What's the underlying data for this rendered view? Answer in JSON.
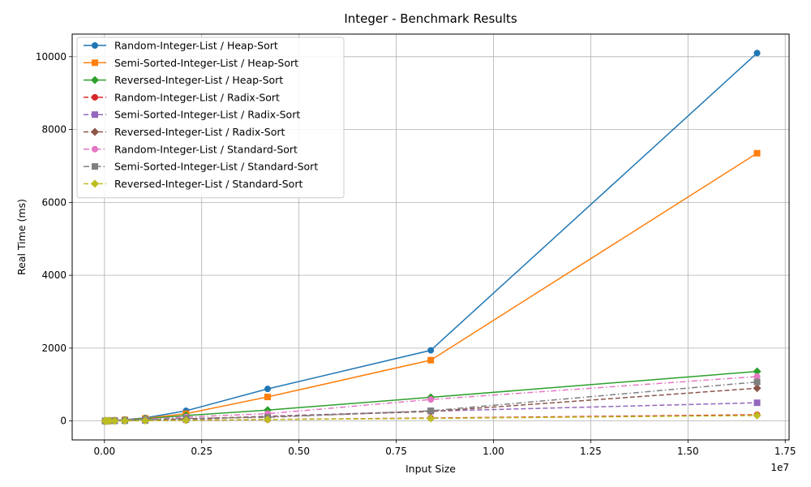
{
  "chart_data": {
    "type": "line",
    "title": "Integer - Benchmark Results",
    "xlabel": "Input Size",
    "ylabel": "Real Time (ms)",
    "x_offset_label": "1e7",
    "x_tick_labels": [
      "0.00",
      "0.25",
      "0.50",
      "0.75",
      "1.00",
      "1.25",
      "1.50",
      "1.75"
    ],
    "y_tick_labels": [
      "0",
      "2000",
      "4000",
      "6000",
      "8000",
      "10000"
    ],
    "x_ticks": [
      0,
      2500000,
      5000000,
      7500000,
      10000000,
      12500000,
      15000000,
      17500000
    ],
    "y_ticks": [
      0,
      2000,
      4000,
      6000,
      8000,
      10000
    ],
    "xlim": [
      -830000,
      17600000
    ],
    "ylim": [
      -520,
      10620
    ],
    "grid": true,
    "legend_position": "top-left",
    "x": [
      16384,
      32768,
      65536,
      131072,
      262144,
      524288,
      1048576,
      2097152,
      4194304,
      8388608,
      16777216
    ],
    "series": [
      {
        "name": "Random-Integer-List / Heap-Sort",
        "color": "#1f77b4",
        "marker": "circle",
        "linestyle": "solid",
        "values": [
          1,
          2,
          4,
          9,
          20,
          38,
          85,
          280,
          880,
          1940,
          10100
        ]
      },
      {
        "name": "Semi-Sorted-Integer-List / Heap-Sort",
        "color": "#ff7f0e",
        "marker": "square",
        "linestyle": "solid",
        "values": [
          1,
          2,
          3,
          7,
          15,
          32,
          70,
          200,
          660,
          1670,
          7350
        ]
      },
      {
        "name": "Reversed-Integer-List / Heap-Sort",
        "color": "#2ca02c",
        "marker": "diamond",
        "linestyle": "solid",
        "values": [
          1,
          1,
          3,
          6,
          13,
          28,
          60,
          150,
          300,
          650,
          1360
        ]
      },
      {
        "name": "Random-Integer-List / Radix-Sort",
        "color": "#d62728",
        "marker": "circle",
        "linestyle": "dashed",
        "values": [
          0,
          0,
          1,
          1,
          3,
          5,
          10,
          20,
          40,
          80,
          170
        ]
      },
      {
        "name": "Semi-Sorted-Integer-List / Radix-Sort",
        "color": "#9467bd",
        "marker": "square",
        "linestyle": "dashed",
        "values": [
          0,
          1,
          1,
          2,
          4,
          8,
          16,
          40,
          130,
          270,
          500
        ]
      },
      {
        "name": "Reversed-Integer-List / Radix-Sort",
        "color": "#8c564b",
        "marker": "diamond",
        "linestyle": "dashed",
        "values": [
          0,
          1,
          1,
          3,
          5,
          10,
          25,
          60,
          120,
          260,
          900
        ]
      },
      {
        "name": "Random-Integer-List / Standard-Sort",
        "color": "#e377c2",
        "marker": "circle",
        "linestyle": "dashdot",
        "values": [
          1,
          1,
          3,
          6,
          12,
          25,
          50,
          110,
          200,
          590,
          1220
        ]
      },
      {
        "name": "Semi-Sorted-Integer-List / Standard-Sort",
        "color": "#7f7f7f",
        "marker": "square",
        "linestyle": "dashdot",
        "values": [
          1,
          1,
          2,
          4,
          9,
          18,
          35,
          70,
          100,
          280,
          1070
        ]
      },
      {
        "name": "Reversed-Integer-List / Standard-Sort",
        "color": "#bcbd22",
        "marker": "diamond",
        "linestyle": "dashed",
        "values": [
          0,
          0,
          1,
          1,
          2,
          4,
          8,
          18,
          40,
          70,
          150
        ]
      }
    ]
  }
}
